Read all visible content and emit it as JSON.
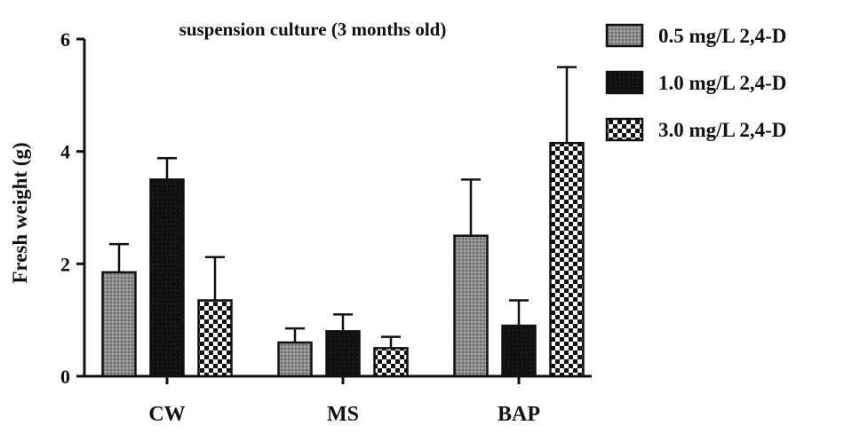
{
  "chart_data": {
    "type": "bar",
    "title": "suspension culture (3 months old)",
    "xlabel": "",
    "ylabel": "Fresh weight (g)",
    "ylim": [
      0,
      6
    ],
    "yticks": [
      0,
      2,
      4,
      6
    ],
    "categories": [
      "CW",
      "MS",
      "BAP"
    ],
    "series": [
      {
        "name": "0.5 mg/L 2,4-D",
        "pattern": "hatch-gray",
        "values": [
          1.85,
          0.6,
          2.5
        ],
        "errors": [
          0.5,
          0.25,
          1.0
        ]
      },
      {
        "name": "1.0 mg/L 2,4-D",
        "pattern": "dots-black",
        "values": [
          3.5,
          0.8,
          0.9
        ],
        "errors": [
          0.38,
          0.3,
          0.45
        ]
      },
      {
        "name": "3.0 mg/L 2,4-D",
        "pattern": "checker",
        "values": [
          1.35,
          0.5,
          4.15
        ],
        "errors": [
          0.77,
          0.2,
          1.35
        ]
      }
    ],
    "legend_position": "top-right",
    "grid": false,
    "error_bars": "upper"
  }
}
